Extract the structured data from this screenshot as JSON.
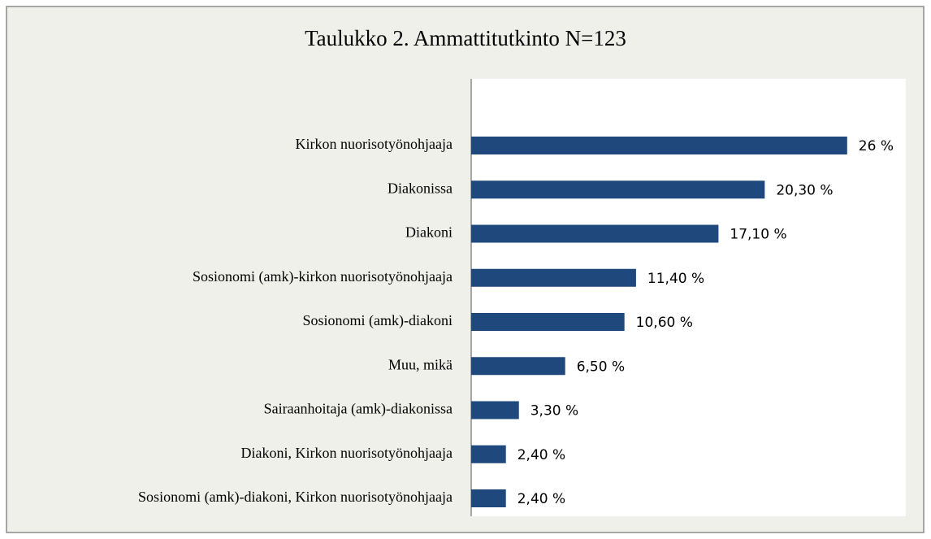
{
  "chart_data": {
    "type": "hbar",
    "title": "Taulukko 2. Ammattitutkinto N=123",
    "categories": [
      "Kirkon nuorisotyönohjaaja",
      "Diakonissa",
      "Diakoni",
      "Sosionomi (amk)-kirkon nuorisotyönohjaaja",
      "Sosionomi (amk)-diakoni",
      "Muu, mikä",
      "Sairaanhoitaja (amk)-diakonissa",
      "Diakoni, Kirkon nuorisotyönohjaaja",
      "Sosionomi (amk)-diakoni, Kirkon nuorisotyönohjaaja"
    ],
    "values": [
      26,
      20.3,
      17.1,
      11.4,
      10.6,
      6.5,
      3.3,
      2.4,
      2.4
    ],
    "value_labels": [
      "26 %",
      "20,30 %",
      "17,10 %",
      "11,40 %",
      "10,60 %",
      "6,50 %",
      "3,30 %",
      "2,40 %",
      "2,40 %"
    ],
    "color": "#1f497d",
    "xlim": [
      0,
      30
    ]
  }
}
